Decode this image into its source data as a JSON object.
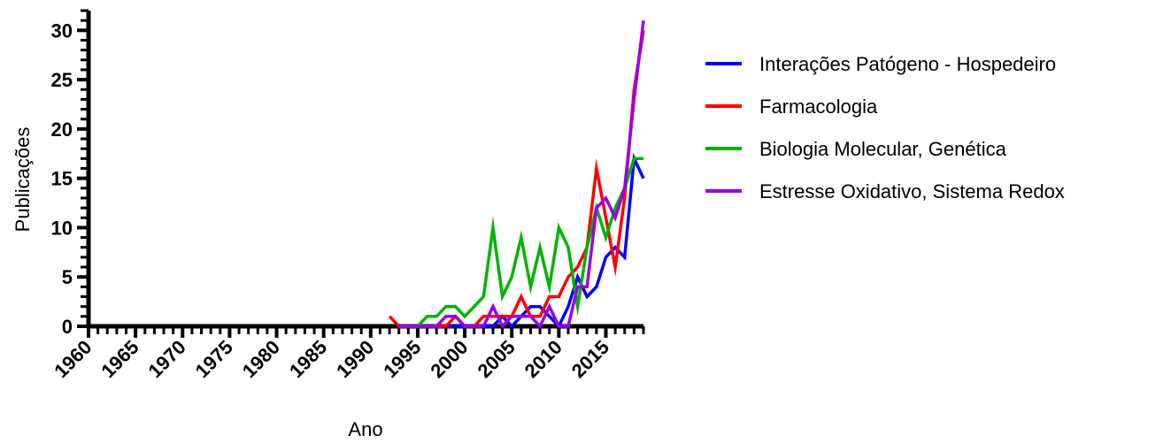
{
  "chart_data": {
    "type": "line",
    "xlabel": "Ano",
    "ylabel": "Publicações",
    "xlim": [
      1960,
      2019
    ],
    "ylim": [
      0,
      32
    ],
    "x_ticks": [
      "1960",
      "1965",
      "1970",
      "1975",
      "1980",
      "1985",
      "1990",
      "1995",
      "2000",
      "2005",
      "2010",
      "2015"
    ],
    "y_ticks": [
      "0",
      "5",
      "10",
      "15",
      "20",
      "25",
      "30"
    ],
    "grid": false,
    "legend_position": "right",
    "series": [
      {
        "name": "Interações Patógeno - Hospedeiro",
        "color": "#0000ff",
        "x": [
          1993,
          1994,
          1995,
          1996,
          1997,
          1998,
          1999,
          2000,
          2001,
          2002,
          2003,
          2004,
          2005,
          2006,
          2007,
          2008,
          2009,
          2010,
          2011,
          2012,
          2013,
          2014,
          2015,
          2016,
          2017,
          2018,
          2019
        ],
        "y": [
          0,
          0,
          0,
          0,
          0,
          0,
          0,
          0,
          0,
          0,
          0,
          1,
          0,
          1,
          2,
          2,
          1,
          0,
          2,
          5,
          3,
          4,
          7,
          8,
          7,
          17,
          15
        ]
      },
      {
        "name": "Farmacologia",
        "color": "#ff0000",
        "x": [
          1992,
          1993,
          1994,
          1995,
          1996,
          1997,
          1998,
          1999,
          2000,
          2001,
          2002,
          2003,
          2004,
          2005,
          2006,
          2007,
          2008,
          2009,
          2010,
          2011,
          2012,
          2013,
          2014,
          2015,
          2016,
          2017,
          2018,
          2019
        ],
        "y": [
          1,
          0,
          0,
          0,
          0,
          0,
          0,
          1,
          0,
          0,
          1,
          1,
          1,
          1,
          3,
          1,
          1,
          3,
          3,
          5,
          6,
          8,
          16,
          11,
          6,
          13,
          24,
          30
        ]
      },
      {
        "name": "Biologia Molecular, Genética",
        "color": "#00b400",
        "x": [
          1993,
          1994,
          1995,
          1996,
          1997,
          1998,
          1999,
          2000,
          2001,
          2002,
          2003,
          2004,
          2005,
          2006,
          2007,
          2008,
          2009,
          2010,
          2011,
          2012,
          2013,
          2014,
          2015,
          2016,
          2017,
          2018,
          2019
        ],
        "y": [
          0,
          0,
          0,
          1,
          1,
          2,
          2,
          1,
          2,
          3,
          10,
          3,
          5,
          9,
          4,
          8,
          4,
          10,
          8,
          2,
          8,
          12,
          9,
          12,
          14,
          17,
          17
        ]
      },
      {
        "name": "Estresse Oxidativo, Sistema Redox",
        "color": "#9b00e6",
        "x": [
          1993,
          1994,
          1995,
          1996,
          1997,
          1998,
          1999,
          2000,
          2001,
          2002,
          2003,
          2004,
          2005,
          2006,
          2007,
          2008,
          2009,
          2010,
          2011,
          2012,
          2013,
          2014,
          2015,
          2016,
          2017,
          2018,
          2019
        ],
        "y": [
          0,
          0,
          0,
          0,
          0,
          1,
          1,
          0,
          0,
          0,
          2,
          0,
          1,
          1,
          1,
          0,
          2,
          0,
          0,
          4,
          4,
          12,
          13,
          11,
          14,
          23,
          31
        ]
      }
    ]
  }
}
